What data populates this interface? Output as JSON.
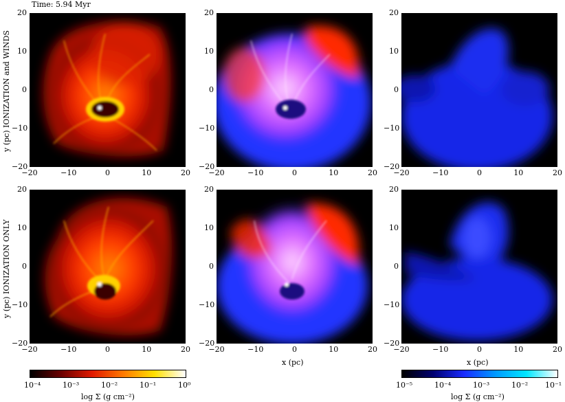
{
  "time_label": "Time: 5.94 Myr",
  "row_labels": [
    "y (pc) IONIZATION and WINDS",
    "y (pc) IONIZATION ONLY"
  ],
  "axis_ticks": [
    "−20",
    "−10",
    "0",
    "10",
    "20"
  ],
  "x_axis_label": "x (pc)",
  "colorbars": {
    "left": {
      "ticks": [
        "10⁻⁴",
        "10⁻³",
        "10⁻²",
        "10⁻¹",
        "10⁰"
      ],
      "label": "log Σ (g cm⁻²)",
      "colors": [
        "#000000",
        "#6b0000",
        "#e01a00",
        "#ff7a00",
        "#ffe000",
        "#ffffff"
      ]
    },
    "right": {
      "ticks": [
        "10⁻⁵",
        "10⁻⁴",
        "10⁻³",
        "10⁻²",
        "10⁻¹"
      ],
      "label": "log Σ (g cm⁻²)",
      "colors": [
        "#000000",
        "#000070",
        "#1a2cff",
        "#0099ff",
        "#00e6ff",
        "#ffffff"
      ]
    }
  }
}
